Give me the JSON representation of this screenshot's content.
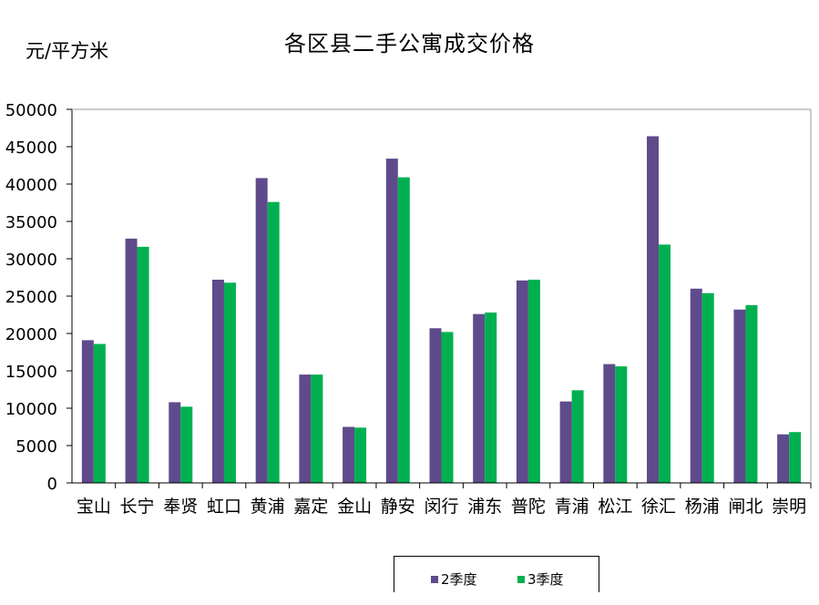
{
  "chart_data": {
    "type": "bar",
    "title": "各区县二手公寓成交价格",
    "ylabel": "元/平方米",
    "xlabel": "",
    "ylim": [
      0,
      50000
    ],
    "yticks": [
      0,
      5000,
      10000,
      15000,
      20000,
      25000,
      30000,
      35000,
      40000,
      45000,
      50000
    ],
    "grid": false,
    "legend_position": "bottom",
    "categories": [
      "宝山",
      "长宁",
      "奉贤",
      "虹口",
      "黄浦",
      "嘉定",
      "金山",
      "静安",
      "闵行",
      "浦东",
      "普陀",
      "青浦",
      "松江",
      "徐汇",
      "杨浦",
      "闸北",
      "崇明"
    ],
    "series": [
      {
        "name": "2季度",
        "color": "#5f4b8b",
        "values": [
          19100,
          32700,
          10800,
          27200,
          40800,
          14500,
          7500,
          43400,
          20700,
          22600,
          27100,
          10900,
          15900,
          46400,
          26000,
          23200,
          6500
        ]
      },
      {
        "name": "3季度",
        "color": "#00b050",
        "values": [
          18600,
          31600,
          10200,
          26800,
          37600,
          14500,
          7400,
          40900,
          20200,
          22800,
          27200,
          12400,
          15600,
          31900,
          25400,
          23800,
          6800
        ]
      }
    ]
  }
}
